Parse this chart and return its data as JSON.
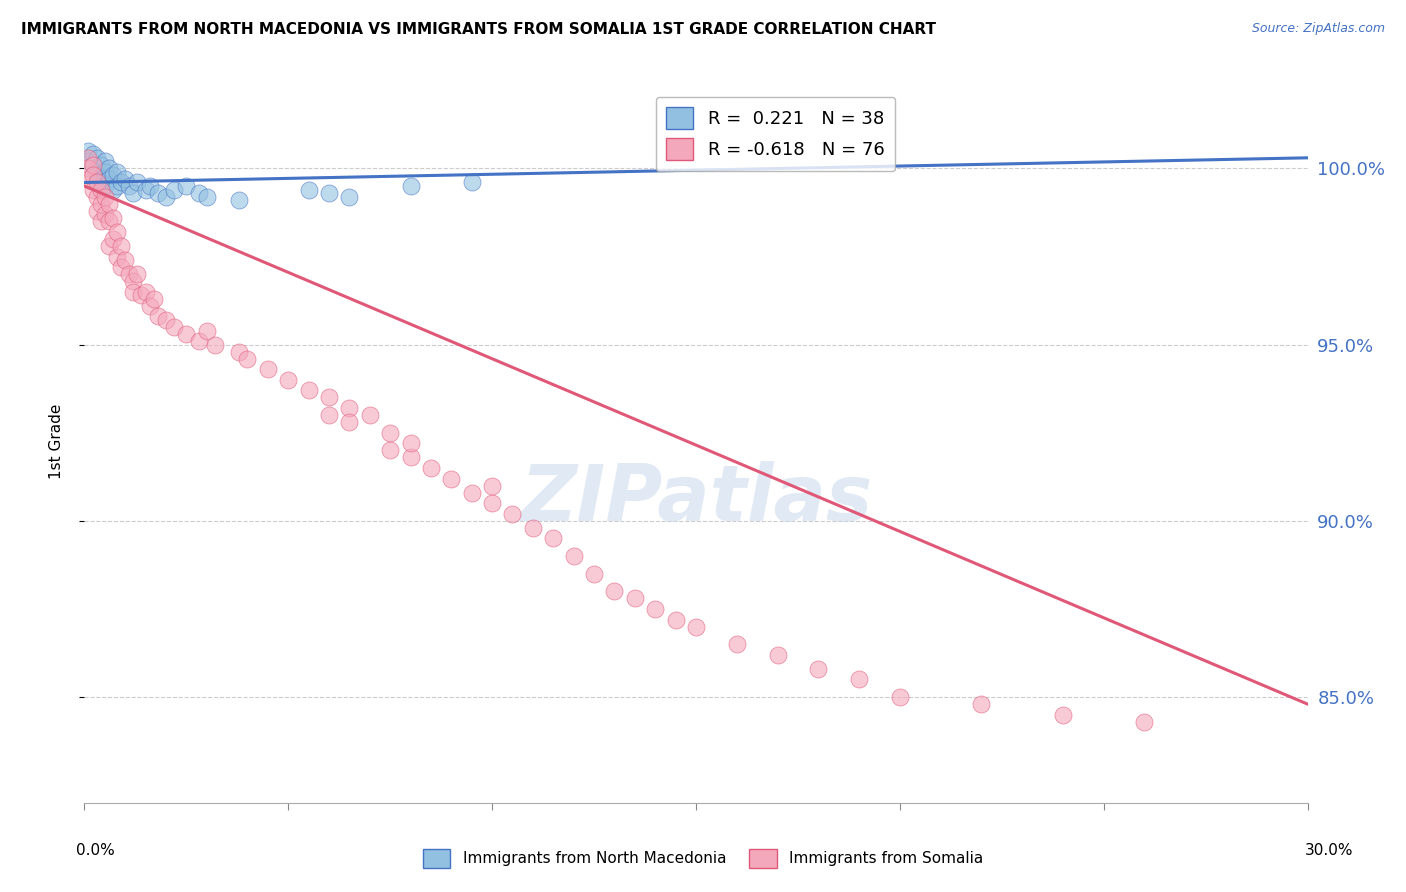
{
  "title": "IMMIGRANTS FROM NORTH MACEDONIA VS IMMIGRANTS FROM SOMALIA 1ST GRADE CORRELATION CHART",
  "source": "Source: ZipAtlas.com",
  "ylabel": "1st Grade",
  "xlim": [
    0.0,
    0.3
  ],
  "ylim": [
    82.0,
    102.5
  ],
  "yticks": [
    85.0,
    90.0,
    95.0,
    100.0
  ],
  "r_macedonia": 0.221,
  "n_macedonia": 38,
  "r_somalia": -0.618,
  "n_somalia": 76,
  "color_macedonia": "#92c0e0",
  "color_somalia": "#f4a8bc",
  "line_color_macedonia": "#4472c4",
  "line_color_somalia": "#e05878",
  "watermark": "ZIPatlas",
  "macedonia_x": [
    0.001,
    0.001,
    0.002,
    0.002,
    0.003,
    0.003,
    0.003,
    0.003,
    0.004,
    0.004,
    0.005,
    0.005,
    0.005,
    0.006,
    0.006,
    0.007,
    0.007,
    0.008,
    0.008,
    0.009,
    0.01,
    0.011,
    0.012,
    0.013,
    0.015,
    0.016,
    0.018,
    0.02,
    0.022,
    0.025,
    0.028,
    0.03,
    0.038,
    0.055,
    0.06,
    0.065,
    0.08,
    0.095
  ],
  "macedonia_y": [
    100.5,
    100.2,
    100.4,
    100.1,
    100.3,
    100.0,
    99.8,
    99.6,
    100.1,
    99.7,
    100.2,
    99.9,
    99.5,
    100.0,
    99.7,
    99.8,
    99.4,
    99.9,
    99.5,
    99.6,
    99.7,
    99.5,
    99.3,
    99.6,
    99.4,
    99.5,
    99.3,
    99.2,
    99.4,
    99.5,
    99.3,
    99.2,
    99.1,
    99.4,
    99.3,
    99.2,
    99.5,
    99.6
  ],
  "somalia_x": [
    0.001,
    0.001,
    0.001,
    0.002,
    0.002,
    0.002,
    0.003,
    0.003,
    0.003,
    0.004,
    0.004,
    0.004,
    0.005,
    0.005,
    0.006,
    0.006,
    0.006,
    0.007,
    0.007,
    0.008,
    0.008,
    0.009,
    0.009,
    0.01,
    0.011,
    0.012,
    0.012,
    0.013,
    0.014,
    0.015,
    0.016,
    0.017,
    0.018,
    0.02,
    0.022,
    0.025,
    0.028,
    0.03,
    0.032,
    0.038,
    0.04,
    0.045,
    0.05,
    0.055,
    0.06,
    0.06,
    0.065,
    0.065,
    0.07,
    0.075,
    0.075,
    0.08,
    0.08,
    0.085,
    0.09,
    0.095,
    0.1,
    0.1,
    0.105,
    0.11,
    0.115,
    0.12,
    0.125,
    0.13,
    0.135,
    0.14,
    0.145,
    0.15,
    0.16,
    0.17,
    0.18,
    0.19,
    0.2,
    0.22,
    0.24,
    0.26
  ],
  "somalia_y": [
    100.3,
    100.0,
    99.7,
    100.1,
    99.8,
    99.4,
    99.6,
    99.2,
    98.8,
    99.4,
    99.0,
    98.5,
    99.2,
    98.7,
    99.0,
    98.5,
    97.8,
    98.6,
    98.0,
    98.2,
    97.5,
    97.8,
    97.2,
    97.4,
    97.0,
    96.8,
    96.5,
    97.0,
    96.4,
    96.5,
    96.1,
    96.3,
    95.8,
    95.7,
    95.5,
    95.3,
    95.1,
    95.4,
    95.0,
    94.8,
    94.6,
    94.3,
    94.0,
    93.7,
    93.5,
    93.0,
    93.2,
    92.8,
    93.0,
    92.5,
    92.0,
    91.8,
    92.2,
    91.5,
    91.2,
    90.8,
    90.5,
    91.0,
    90.2,
    89.8,
    89.5,
    89.0,
    88.5,
    88.0,
    87.8,
    87.5,
    87.2,
    87.0,
    86.5,
    86.2,
    85.8,
    85.5,
    85.0,
    84.8,
    84.5,
    84.3
  ],
  "mac_line_x": [
    0.0,
    0.3
  ],
  "mac_line_y": [
    99.6,
    100.3
  ],
  "som_line_x": [
    0.0,
    0.3
  ],
  "som_line_y": [
    99.5,
    84.8
  ]
}
